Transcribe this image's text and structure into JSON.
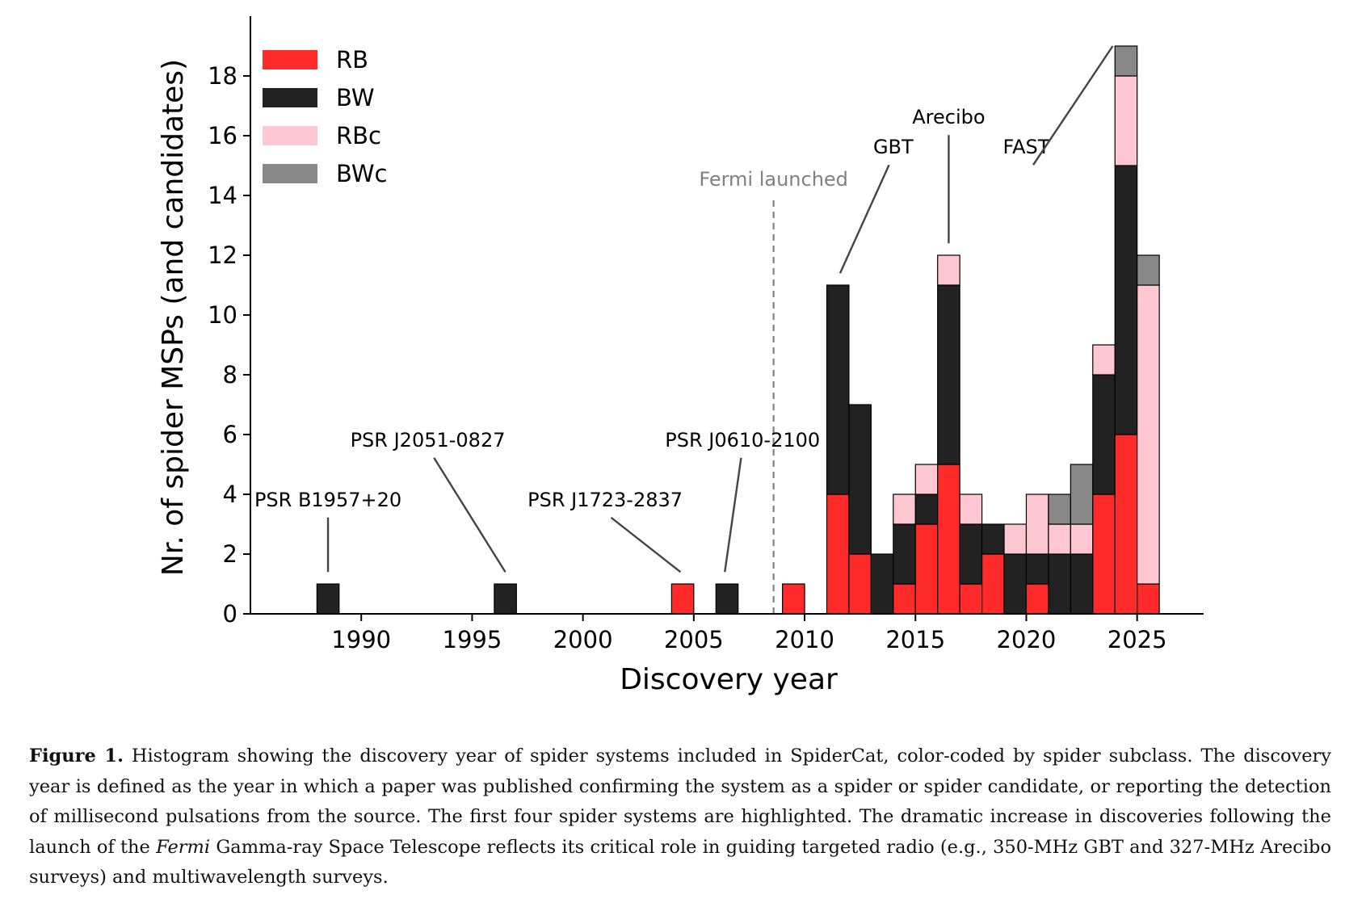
{
  "chart_data": {
    "type": "bar",
    "stacked": true,
    "bin_width": 1,
    "xlabel": "Discovery year",
    "ylabel": "Nr. of spider MSPs (and candidates)",
    "xlim": [
      1985,
      2028
    ],
    "ylim": [
      0,
      20
    ],
    "xticks": [
      1990,
      1995,
      2000,
      2005,
      2010,
      2015,
      2020,
      2025
    ],
    "yticks": [
      0,
      2,
      4,
      6,
      8,
      10,
      12,
      14,
      16,
      18
    ],
    "legend_position": "top-left",
    "series": [
      {
        "name": "RB",
        "color": "#ff2a2a"
      },
      {
        "name": "BW",
        "color": "#222222"
      },
      {
        "name": "RBc",
        "color": "#ffc7d1"
      },
      {
        "name": "BWc",
        "color": "#888888"
      }
    ],
    "bins": [
      {
        "x": 1988,
        "RB": 0,
        "BW": 1,
        "RBc": 0,
        "BWc": 0
      },
      {
        "x": 1996,
        "RB": 0,
        "BW": 1,
        "RBc": 0,
        "BWc": 0
      },
      {
        "x": 2004,
        "RB": 1,
        "BW": 0,
        "RBc": 0,
        "BWc": 0
      },
      {
        "x": 2006,
        "RB": 0,
        "BW": 1,
        "RBc": 0,
        "BWc": 0
      },
      {
        "x": 2009,
        "RB": 1,
        "BW": 0,
        "RBc": 0,
        "BWc": 0
      },
      {
        "x": 2011,
        "RB": 4,
        "BW": 7,
        "RBc": 0,
        "BWc": 0
      },
      {
        "x": 2012,
        "RB": 2,
        "BW": 5,
        "RBc": 0,
        "BWc": 0
      },
      {
        "x": 2013,
        "RB": 0,
        "BW": 2,
        "RBc": 0,
        "BWc": 0
      },
      {
        "x": 2014,
        "RB": 1,
        "BW": 2,
        "RBc": 1,
        "BWc": 0
      },
      {
        "x": 2015,
        "RB": 3,
        "BW": 1,
        "RBc": 1,
        "BWc": 0
      },
      {
        "x": 2016,
        "RB": 5,
        "BW": 6,
        "RBc": 1,
        "BWc": 0
      },
      {
        "x": 2017,
        "RB": 1,
        "BW": 2,
        "RBc": 1,
        "BWc": 0
      },
      {
        "x": 2018,
        "RB": 2,
        "BW": 1,
        "RBc": 0,
        "BWc": 0
      },
      {
        "x": 2019,
        "RB": 0,
        "BW": 2,
        "RBc": 1,
        "BWc": 0
      },
      {
        "x": 2020,
        "RB": 1,
        "BW": 1,
        "RBc": 2,
        "BWc": 0
      },
      {
        "x": 2021,
        "RB": 0,
        "BW": 2,
        "RBc": 1,
        "BWc": 1
      },
      {
        "x": 2022,
        "RB": 0,
        "BW": 2,
        "RBc": 1,
        "BWc": 2
      },
      {
        "x": 2023,
        "RB": 4,
        "BW": 4,
        "RBc": 1,
        "BWc": 0
      },
      {
        "x": 2024,
        "RB": 6,
        "BW": 9,
        "RBc": 3,
        "BWc": 1
      },
      {
        "x": 2025,
        "RB": 1,
        "BW": 0,
        "RBc": 10,
        "BWc": 1
      }
    ],
    "vline": {
      "x": 2008.6,
      "label": "Fermi launched",
      "color": "#808080"
    },
    "annotations": [
      {
        "text": "PSR B1957+20",
        "text_x": 1988.5,
        "text_y": 3.6,
        "point_x": 1988.5,
        "point_y": 1.4
      },
      {
        "text": "PSR J2051-0827",
        "text_x": 1993,
        "text_y": 5.6,
        "point_x": 1996.5,
        "point_y": 1.4
      },
      {
        "text": "PSR J1723-2837",
        "text_x": 2001,
        "text_y": 3.6,
        "point_x": 2004.4,
        "point_y": 1.4
      },
      {
        "text": "PSR J0610-2100",
        "text_x": 2007.2,
        "text_y": 5.6,
        "point_x": 2006.4,
        "point_y": 1.4
      },
      {
        "text": "GBT",
        "text_x": 2014,
        "text_y": 15.4,
        "point_x": 2011.6,
        "point_y": 11.4
      },
      {
        "text": "Arecibo",
        "text_x": 2016.5,
        "text_y": 16.4,
        "point_x": 2016.5,
        "point_y": 12.4
      },
      {
        "text": "FAST",
        "text_x": 2020,
        "text_y": 15.4,
        "point_x": 2023.9,
        "point_y": 19
      }
    ]
  },
  "caption": {
    "label": "Figure 1.",
    "part1": "Histogram showing the discovery year of spider systems included in SpiderCat, color-coded by spider subclass. The discovery year is defined as the year in which a paper was published confirming the system as a spider or spider candidate, or reporting the detection of millisecond pulsations from the source. The first four spider systems are highlighted. The dramatic increase in discoveries following the launch of the",
    "italic": "Fermi",
    "part2": "Gamma-ray Space Telescope reflects its critical role in guiding targeted radio (e.g., 350-MHz GBT and 327-MHz Arecibo surveys) and multiwavelength surveys."
  }
}
